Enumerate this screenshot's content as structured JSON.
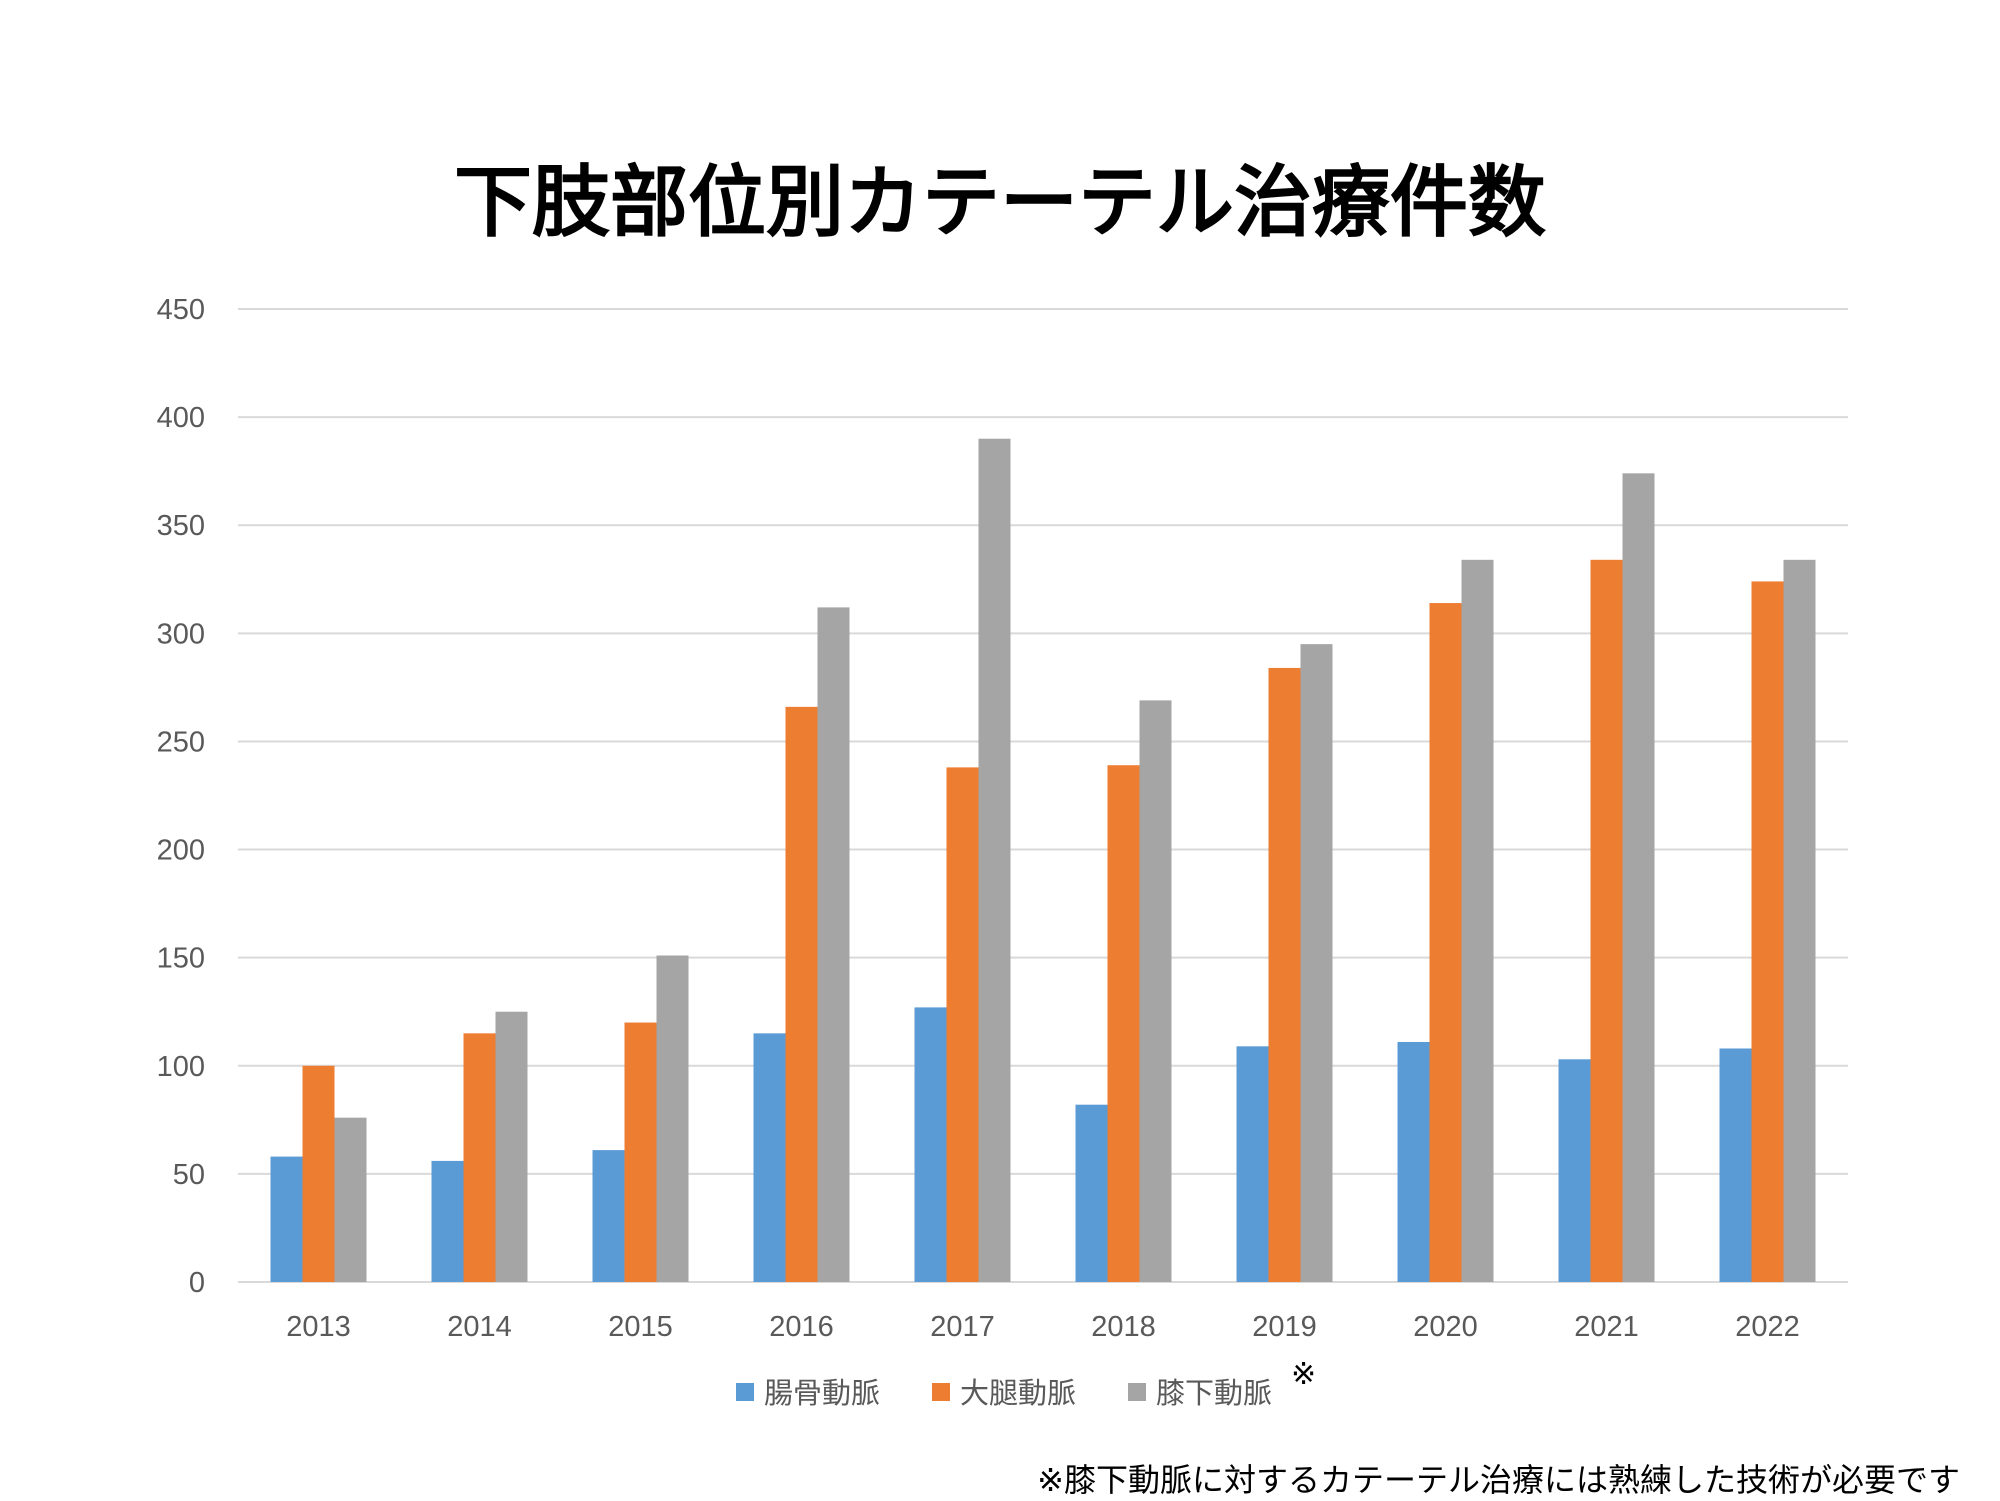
{
  "chart_data": {
    "type": "bar",
    "title": "下肢部位別カテーテル治療件数",
    "categories": [
      "2013",
      "2014",
      "2015",
      "2016",
      "2017",
      "2018",
      "2019",
      "2020",
      "2021",
      "2022"
    ],
    "series": [
      {
        "name": "腸骨動脈",
        "color": "#5B9BD5",
        "values": [
          58,
          56,
          61,
          115,
          127,
          82,
          109,
          111,
          103,
          108
        ]
      },
      {
        "name": "大腿動脈",
        "color": "#ED7D31",
        "values": [
          100,
          115,
          120,
          266,
          238,
          239,
          284,
          314,
          334,
          324
        ]
      },
      {
        "name": "膝下動脈",
        "color": "#A5A5A5",
        "values": [
          76,
          125,
          151,
          312,
          390,
          269,
          295,
          334,
          374,
          334
        ]
      }
    ],
    "ylim": [
      0,
      450
    ],
    "yticks": [
      0,
      50,
      100,
      150,
      200,
      250,
      300,
      350,
      400,
      450
    ],
    "grid": true,
    "legend_position": "bottom",
    "legend_note_mark": "※",
    "gridline_color": "#D9D9D9"
  },
  "footnote": "※膝下動脈に対するカテーテル治療には熟練した技術が必要です"
}
